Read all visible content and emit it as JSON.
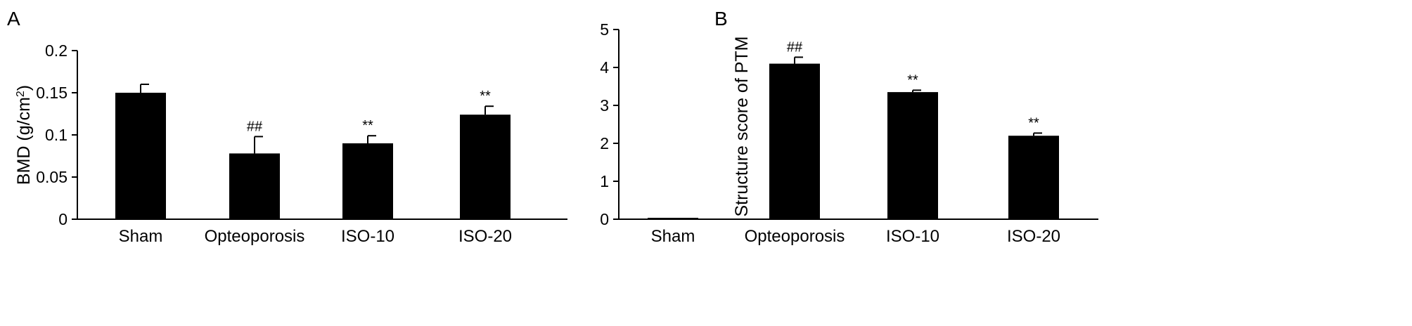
{
  "chart_data": [
    {
      "panel_label": "A",
      "type": "bar",
      "categories": [
        "Sham",
        "Opteoporosis",
        "ISO-10",
        "ISO-20"
      ],
      "values": [
        0.15,
        0.078,
        0.09,
        0.124
      ],
      "errors": [
        0.01,
        0.02,
        0.009,
        0.01
      ],
      "annotations": [
        "",
        "##",
        "**",
        "**"
      ],
      "ylabel": "BMD (g/cm",
      "ylabel_sup": "2",
      "ylabel_end": ")",
      "ylim": [
        0,
        0.2
      ],
      "yticks": [
        0,
        0.05,
        0.1,
        0.15,
        0.2
      ],
      "ytick_labels": [
        "0",
        "0.05",
        "0.1",
        "0.15",
        "0.2"
      ],
      "bar_color": "#000000",
      "grid": false
    },
    {
      "panel_label": "B",
      "type": "bar",
      "categories": [
        "Sham",
        "Opteoporosis",
        "ISO-10",
        "ISO-20"
      ],
      "values": [
        0.02,
        4.1,
        3.35,
        2.2
      ],
      "errors": [
        0,
        0.17,
        0.05,
        0.07
      ],
      "annotations": [
        "",
        "##",
        "**",
        "**"
      ],
      "ylabel": "Structure score of PTM",
      "ylim": [
        0,
        5
      ],
      "yticks": [
        0,
        1,
        2,
        3,
        4,
        5
      ],
      "ytick_labels": [
        "0",
        "1",
        "2",
        "3",
        "4",
        "5"
      ],
      "bar_color": "#000000",
      "grid": false
    }
  ]
}
